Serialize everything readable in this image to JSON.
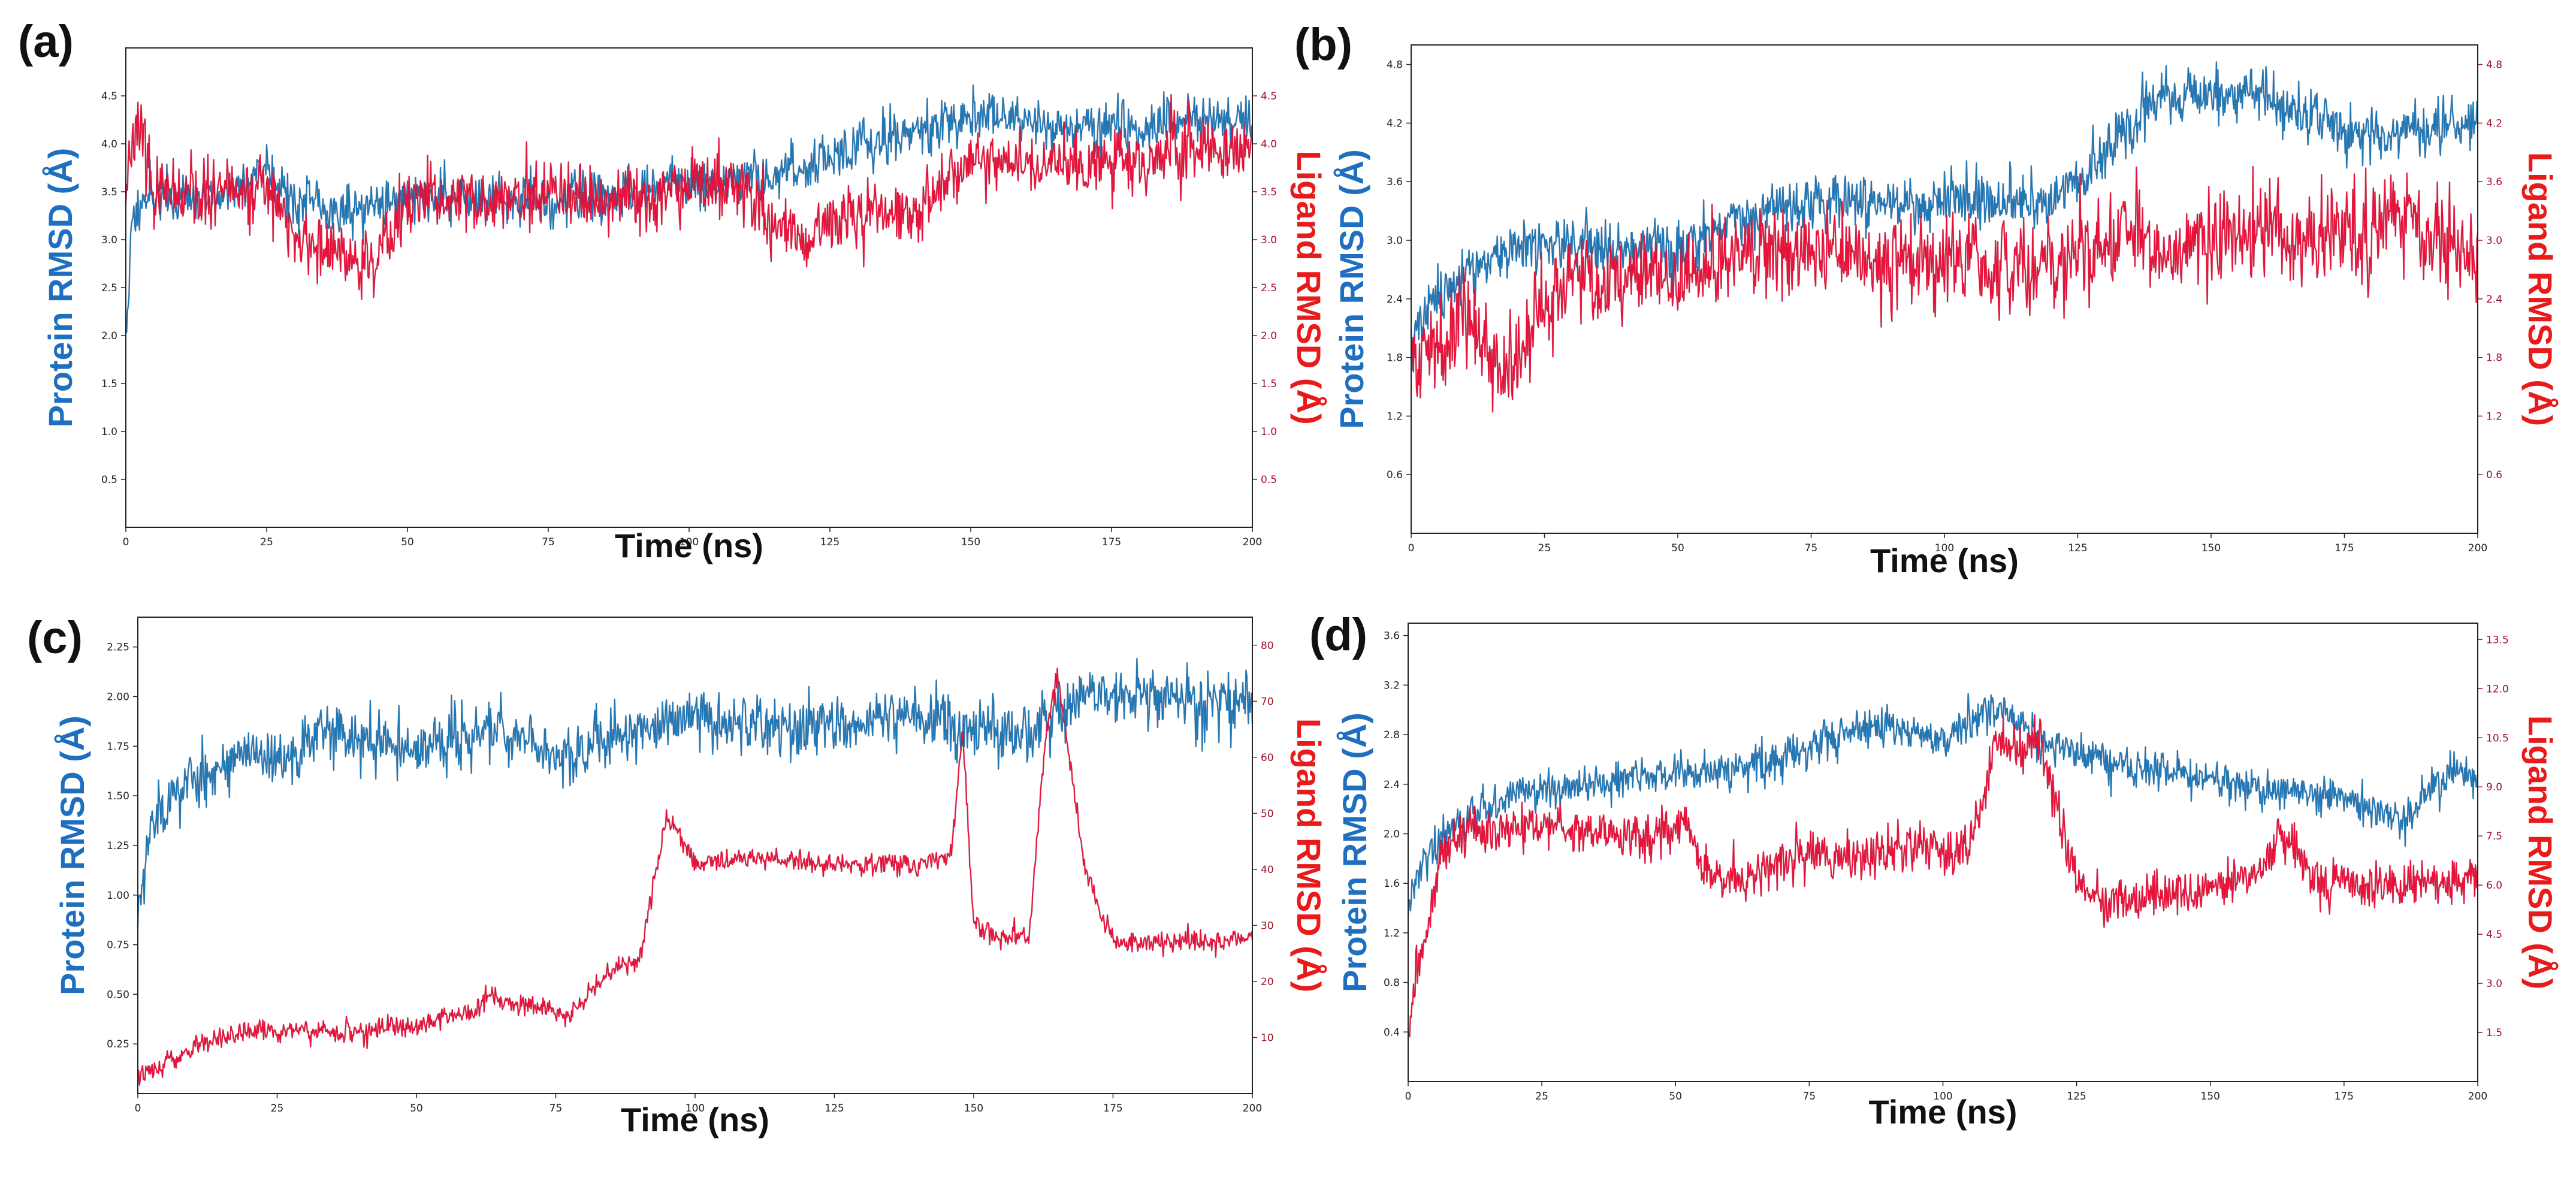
{
  "colors": {
    "protein": "#1f77b4",
    "protein_dark": "#1a3f7a",
    "ligand": "#e8113a",
    "ligand_dark": "#8b1025",
    "protein_title": "#1f6fc0",
    "ligand_title": "#e81a1a",
    "right_tick": "#a0112a"
  },
  "chart_data": [
    {
      "panel": "(a)",
      "type": "line",
      "xlabel": "Time (ns)",
      "ylabel_left": "Protein RMSD (Å)",
      "ylabel_right": "Ligand RMSD (Å)",
      "xlim": [
        0,
        200
      ],
      "ylim_left": [
        0,
        5.0
      ],
      "ylim_right": [
        0,
        5.0
      ],
      "xticks": [
        "0",
        "25",
        "50",
        "75",
        "100",
        "125",
        "150",
        "175",
        "200"
      ],
      "yticks_left": [
        "0.5",
        "1.0",
        "1.5",
        "2.0",
        "2.5",
        "3.0",
        "3.5",
        "4.0",
        "4.5"
      ],
      "yticks_right": [
        "0.5",
        "1.0",
        "1.5",
        "2.0",
        "2.5",
        "3.0",
        "3.5",
        "4.0",
        "4.5"
      ],
      "series": [
        {
          "name": "Protein RMSD",
          "axis": "left",
          "noise": 0.17,
          "seed": 11,
          "x": [
            0,
            1,
            3,
            10,
            20,
            25,
            30,
            40,
            50,
            60,
            75,
            90,
            100,
            110,
            120,
            130,
            140,
            150,
            160,
            175,
            190,
            200
          ],
          "y": [
            1.9,
            3.1,
            3.5,
            3.4,
            3.5,
            3.8,
            3.4,
            3.3,
            3.45,
            3.45,
            3.4,
            3.5,
            3.6,
            3.6,
            3.75,
            4.0,
            4.1,
            4.3,
            4.2,
            4.15,
            4.25,
            4.2
          ]
        },
        {
          "name": "Ligand RMSD",
          "axis": "right",
          "noise": 0.22,
          "seed": 23,
          "x": [
            0,
            2,
            5,
            10,
            20,
            25,
            30,
            40,
            45,
            50,
            60,
            75,
            90,
            100,
            110,
            115,
            120,
            130,
            140,
            150,
            160,
            175,
            190,
            200
          ],
          "y": [
            3.6,
            4.3,
            3.5,
            3.4,
            3.5,
            3.6,
            3.0,
            2.8,
            2.8,
            3.4,
            3.4,
            3.4,
            3.4,
            3.6,
            3.5,
            3.1,
            3.0,
            3.3,
            3.3,
            3.85,
            3.75,
            3.8,
            3.9,
            4.0
          ]
        }
      ]
    },
    {
      "panel": "(b)",
      "type": "line",
      "xlabel": "Time (ns)",
      "ylabel_left": "Protein RMSD (Å)",
      "ylabel_right": "Ligand RMSD (Å)",
      "xlim": [
        0,
        200
      ],
      "ylim_left": [
        0,
        5.0
      ],
      "ylim_right": [
        0,
        5.0
      ],
      "xticks": [
        "0",
        "25",
        "50",
        "75",
        "100",
        "125",
        "150",
        "175",
        "200"
      ],
      "yticks_left": [
        "0.6",
        "1.2",
        "1.8",
        "2.4",
        "3.0",
        "3.6",
        "4.2",
        "4.8"
      ],
      "yticks_right": [
        "0.6",
        "1.2",
        "1.8",
        "2.4",
        "3.0",
        "3.6",
        "4.2",
        "4.8"
      ],
      "series": [
        {
          "name": "Protein RMSD",
          "axis": "left",
          "noise": 0.18,
          "seed": 37,
          "x": [
            0,
            3,
            10,
            20,
            30,
            50,
            60,
            75,
            90,
            100,
            120,
            125,
            140,
            150,
            160,
            175,
            190,
            200
          ],
          "y": [
            1.9,
            2.3,
            2.7,
            2.9,
            3.0,
            2.9,
            3.25,
            3.4,
            3.35,
            3.4,
            3.4,
            3.6,
            4.4,
            4.5,
            4.5,
            4.1,
            4.1,
            4.2
          ]
        },
        {
          "name": "Ligand RMSD",
          "axis": "right",
          "noise": 0.3,
          "seed": 41,
          "x": [
            0,
            5,
            10,
            15,
            20,
            25,
            30,
            50,
            60,
            75,
            90,
            100,
            120,
            130,
            140,
            150,
            160,
            175,
            180,
            185,
            190,
            200
          ],
          "y": [
            1.7,
            2.0,
            2.3,
            1.7,
            1.7,
            2.4,
            2.6,
            2.6,
            2.8,
            2.9,
            2.8,
            2.8,
            2.7,
            3.0,
            2.9,
            3.0,
            3.1,
            3.05,
            3.15,
            3.3,
            3.0,
            2.95
          ]
        }
      ]
    },
    {
      "panel": "(c)",
      "type": "line",
      "xlabel": "Time (ns)",
      "ylabel_left": "Protein RMSD (Å)",
      "ylabel_right": "Ligand RMSD (Å)",
      "xlim": [
        0,
        200
      ],
      "ylim_left": [
        0,
        2.4
      ],
      "ylim_right": [
        0,
        85
      ],
      "xticks": [
        "0",
        "25",
        "50",
        "75",
        "100",
        "125",
        "150",
        "175",
        "200"
      ],
      "yticks_left": [
        "0.25",
        "0.50",
        "0.75",
        "1.00",
        "1.25",
        "1.50",
        "1.75",
        "2.00",
        "2.25"
      ],
      "yticks_right": [
        "10",
        "20",
        "30",
        "40",
        "50",
        "60",
        "70",
        "80"
      ],
      "series": [
        {
          "name": "Protein RMSD",
          "axis": "left",
          "noise": 0.1,
          "seed": 53,
          "x": [
            0,
            2,
            10,
            20,
            25,
            35,
            45,
            55,
            65,
            75,
            85,
            100,
            110,
            125,
            140,
            150,
            160,
            170,
            185,
            200
          ],
          "y": [
            0.9,
            1.35,
            1.6,
            1.7,
            1.65,
            1.85,
            1.75,
            1.75,
            1.85,
            1.7,
            1.8,
            1.9,
            1.85,
            1.85,
            1.9,
            1.85,
            1.8,
            2.0,
            2.0,
            1.95
          ]
        },
        {
          "name": "Ligand RMSD",
          "axis": "right",
          "noise": 1.2,
          "seed": 67,
          "x": [
            0,
            5,
            10,
            15,
            25,
            40,
            50,
            55,
            60,
            63,
            66,
            70,
            78,
            85,
            90,
            95,
            100,
            110,
            125,
            140,
            146,
            148,
            150,
            155,
            160,
            163,
            165,
            170,
            175,
            190,
            200
          ],
          "y": [
            3,
            5,
            8,
            10,
            11,
            11,
            12,
            14,
            14,
            18,
            16,
            16,
            14,
            22,
            24,
            50,
            41,
            42,
            41,
            41,
            43,
            65,
            30,
            28,
            28,
            65,
            75,
            40,
            27,
            27,
            28
          ]
        }
      ]
    },
    {
      "panel": "(d)",
      "type": "line",
      "xlabel": "Time (ns)",
      "ylabel_left": "Protein RMSD (Å)",
      "ylabel_right": "Ligand RMSD (Å)",
      "xlim": [
        0,
        200
      ],
      "ylim_left": [
        0,
        3.7
      ],
      "ylim_right": [
        0,
        14.0
      ],
      "xticks": [
        "0",
        "25",
        "50",
        "75",
        "100",
        "125",
        "150",
        "175",
        "200"
      ],
      "yticks_left": [
        "0.4",
        "0.8",
        "1.2",
        "1.6",
        "2.0",
        "2.4",
        "2.8",
        "3.2",
        "3.6"
      ],
      "yticks_right": [
        "1.5",
        "3.0",
        "4.5",
        "6.0",
        "7.5",
        "9.0",
        "10.5",
        "12.0",
        "13.5"
      ],
      "series": [
        {
          "name": "Protein RMSD",
          "axis": "left",
          "noise": 0.1,
          "seed": 79,
          "x": [
            0,
            3,
            6,
            10,
            20,
            30,
            40,
            50,
            60,
            70,
            80,
            90,
            100,
            110,
            120,
            130,
            140,
            150,
            160,
            175,
            185,
            195,
            200
          ],
          "y": [
            1.4,
            1.8,
            2.0,
            2.1,
            2.35,
            2.35,
            2.45,
            2.5,
            2.5,
            2.6,
            2.8,
            2.85,
            2.8,
            3.0,
            2.7,
            2.6,
            2.5,
            2.45,
            2.35,
            2.3,
            2.1,
            2.5,
            2.4
          ]
        },
        {
          "name": "Ligand RMSD",
          "axis": "right",
          "noise": 0.45,
          "seed": 83,
          "x": [
            0,
            2,
            4,
            6,
            10,
            20,
            30,
            40,
            52,
            55,
            60,
            70,
            75,
            85,
            95,
            105,
            110,
            115,
            118,
            120,
            125,
            130,
            150,
            160,
            163,
            170,
            180,
            200
          ],
          "y": [
            1.5,
            3.5,
            5.0,
            7.0,
            7.5,
            7.8,
            7.7,
            7.5,
            7.8,
            6.5,
            6.0,
            6.8,
            7.0,
            6.8,
            7.2,
            7.0,
            10.5,
            10.0,
            11.0,
            9.0,
            6.0,
            5.5,
            5.8,
            6.5,
            7.5,
            6.2,
            6.0,
            6.2
          ]
        }
      ]
    }
  ]
}
